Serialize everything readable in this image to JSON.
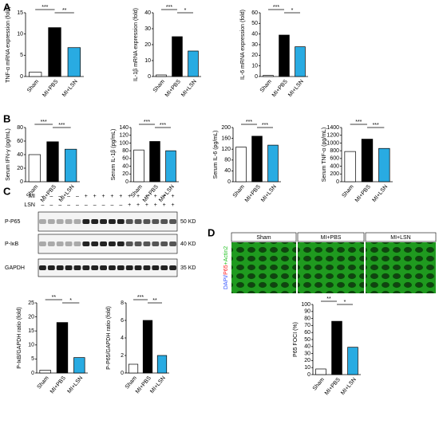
{
  "panel_labels": [
    "A",
    "B",
    "C",
    "D"
  ],
  "chart_data": [
    {
      "type": "bar",
      "ylabel": "TNF-α mRNA expression (fold)",
      "categories": [
        "Sham",
        "MI+PBS",
        "MI+LSN"
      ],
      "values": [
        1,
        11.5,
        6.8
      ],
      "colors": [
        "#ffffff",
        "#000000",
        "#29abe2"
      ],
      "ylim": [
        0,
        15
      ],
      "yticks": [
        0,
        5,
        10,
        15
      ],
      "significance": [
        "***",
        "**"
      ]
    },
    {
      "type": "bar",
      "ylabel": "IL-1β mRNA expression (fold)",
      "categories": [
        "Sham",
        "MI+PBS",
        "MI+LSN"
      ],
      "values": [
        1,
        25,
        16
      ],
      "colors": [
        "#ffffff",
        "#000000",
        "#29abe2"
      ],
      "ylim": [
        0,
        40
      ],
      "yticks": [
        0,
        10,
        20,
        30,
        40
      ],
      "significance": [
        "***",
        "*"
      ]
    },
    {
      "type": "bar",
      "ylabel": "IL-6 mRNA expression (fold)",
      "categories": [
        "Sham",
        "MI+PBS",
        "MI+LSN"
      ],
      "values": [
        1,
        39,
        28
      ],
      "colors": [
        "#ffffff",
        "#000000",
        "#29abe2"
      ],
      "ylim": [
        0,
        60
      ],
      "yticks": [
        0,
        10,
        20,
        30,
        40,
        50,
        60
      ],
      "significance": [
        "***",
        "*"
      ]
    },
    {
      "type": "bar",
      "ylabel": "Serum IFN-γ (pg/mL)",
      "categories": [
        "Sham",
        "MI+PBS",
        "MI+LSN"
      ],
      "values": [
        40,
        59,
        48
      ],
      "colors": [
        "#ffffff",
        "#000000",
        "#29abe2"
      ],
      "ylim": [
        0,
        80
      ],
      "yticks": [
        0,
        20,
        40,
        60,
        80
      ],
      "significance": [
        "***",
        "***"
      ]
    },
    {
      "type": "bar",
      "ylabel": "Serum IL-1β (pg/mL)",
      "categories": [
        "Sham",
        "MI+PBS",
        "MI+LSN"
      ],
      "values": [
        82,
        104,
        80
      ],
      "colors": [
        "#ffffff",
        "#000000",
        "#29abe2"
      ],
      "ylim": [
        0,
        140
      ],
      "yticks": [
        0,
        20,
        40,
        60,
        80,
        100,
        120,
        140
      ],
      "significance": [
        "***",
        "***"
      ]
    },
    {
      "type": "bar",
      "ylabel": "Serum IL-6 (pg/mL)",
      "categories": [
        "Sham",
        "MI+PBS",
        "MI+LSN"
      ],
      "values": [
        128,
        168,
        135
      ],
      "colors": [
        "#ffffff",
        "#000000",
        "#29abe2"
      ],
      "ylim": [
        0,
        200
      ],
      "yticks": [
        0,
        40,
        80,
        120,
        160,
        200
      ],
      "significance": [
        "***",
        "***"
      ]
    },
    {
      "type": "bar",
      "ylabel": "Serum TNF-α (pg/mL)",
      "categories": [
        "Sham",
        "MI+PBS",
        "MI+LSN"
      ],
      "values": [
        780,
        1100,
        860
      ],
      "colors": [
        "#ffffff",
        "#000000",
        "#29abe2"
      ],
      "ylim": [
        0,
        1400
      ],
      "yticks": [
        0,
        200,
        400,
        600,
        800,
        1000,
        1200,
        1400
      ],
      "significance": [
        "***",
        "***"
      ]
    },
    {
      "type": "bar",
      "ylabel": "P-IκB/GAPDH ratio (fold)",
      "categories": [
        "Sham",
        "MI+PBS",
        "MI+LSN"
      ],
      "values": [
        1,
        18,
        5.5
      ],
      "colors": [
        "#ffffff",
        "#000000",
        "#29abe2"
      ],
      "ylim": [
        0,
        25
      ],
      "yticks": [
        0,
        5,
        10,
        15,
        20,
        25
      ],
      "significance": [
        "**",
        "*"
      ]
    },
    {
      "type": "bar",
      "ylabel": "P-P65/GAPDH ratio (fold)",
      "categories": [
        "Sham",
        "MI+PBS",
        "MI+LSN"
      ],
      "values": [
        1,
        6,
        2
      ],
      "colors": [
        "#ffffff",
        "#000000",
        "#29abe2"
      ],
      "ylim": [
        0,
        8
      ],
      "yticks": [
        0,
        2,
        4,
        6,
        8
      ],
      "significance": [
        "***",
        "**"
      ]
    },
    {
      "type": "bar",
      "ylabel": "P65 FOCI (%)",
      "categories": [
        "Sham",
        "MI+PBS",
        "MI+LSN"
      ],
      "values": [
        8,
        76,
        39
      ],
      "colors": [
        "#ffffff",
        "#000000",
        "#29abe2"
      ],
      "ylim": [
        0,
        100
      ],
      "yticks": [
        0,
        10,
        20,
        30,
        40,
        50,
        60,
        70,
        80,
        90,
        100
      ],
      "significance": [
        "**",
        "*"
      ]
    }
  ],
  "blot": {
    "rows": [
      {
        "label": "MI",
        "signs": [
          "–",
          "–",
          "–",
          "–",
          "–",
          "+",
          "+",
          "+",
          "+",
          "+",
          "+",
          "+",
          "+",
          "+",
          "+",
          "+"
        ]
      },
      {
        "label": "LSN",
        "signs": [
          "–",
          "–",
          "–",
          "–",
          "–",
          "–",
          "–",
          "–",
          "–",
          "–",
          "+",
          "+",
          "+",
          "+",
          "+",
          "+"
        ]
      }
    ],
    "bands": [
      {
        "label": "P-P65",
        "marker": "50 KD"
      },
      {
        "label": "P-IκB",
        "marker": "40 KD"
      },
      {
        "label": "GAPDH",
        "marker": "35 KD"
      }
    ]
  },
  "images": {
    "headers": [
      "Sham",
      "MI+PBS",
      "MI+LSN"
    ],
    "stain_label": [
      {
        "text": "DAPI/",
        "color": "#3050ff"
      },
      {
        "text": "P65",
        "color": "#ff2020"
      },
      {
        "text": "+Actin2",
        "color": "#20c020"
      }
    ]
  }
}
